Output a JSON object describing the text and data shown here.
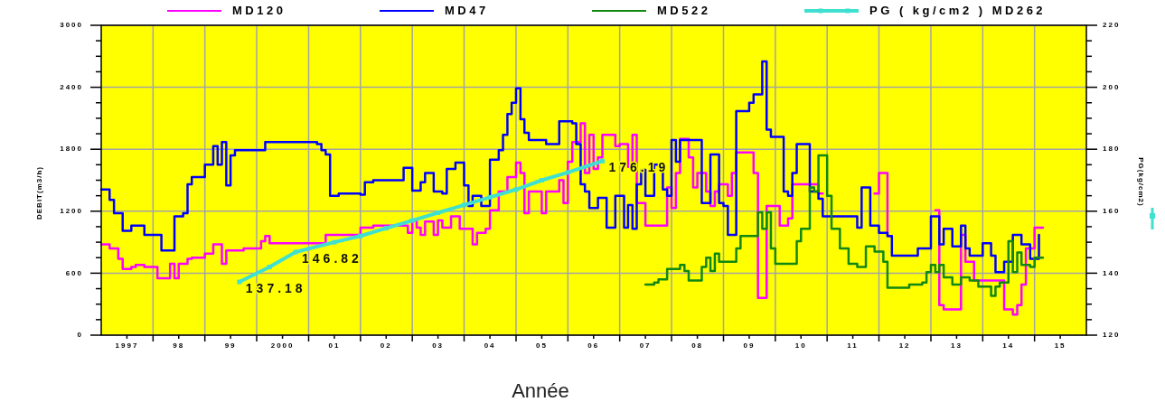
{
  "chart_data": {
    "type": "step",
    "xlabel": "Année",
    "ylabel": "DEBIT(m3/h)",
    "y2label": "PG(kg/cm2)",
    "xlim": [
      "1997",
      "2016"
    ],
    "xticks": [
      {
        "value": "1997-07",
        "label": "1997"
      },
      {
        "value": "1998",
        "label": null
      },
      {
        "value": "1998-07",
        "label": "98"
      },
      {
        "value": "1999",
        "label": null
      },
      {
        "value": "1999-07",
        "label": "99"
      },
      {
        "value": "2000",
        "label": null
      },
      {
        "value": "2000-07",
        "label": "2000"
      },
      {
        "value": "2001",
        "label": null
      },
      {
        "value": "2001-07",
        "label": "01"
      },
      {
        "value": "2002",
        "label": null
      },
      {
        "value": "2002-07",
        "label": "02"
      },
      {
        "value": "2003",
        "label": null
      },
      {
        "value": "2003-07",
        "label": "03"
      },
      {
        "value": "2004",
        "label": null
      },
      {
        "value": "2004-07",
        "label": "04"
      },
      {
        "value": "2005",
        "label": null
      },
      {
        "value": "2005-07",
        "label": "05"
      },
      {
        "value": "2006",
        "label": null
      },
      {
        "value": "2006-07",
        "label": "06"
      },
      {
        "value": "2007",
        "label": null
      },
      {
        "value": "2007-07",
        "label": "07"
      },
      {
        "value": "2008",
        "label": null
      },
      {
        "value": "2008-07",
        "label": "08"
      },
      {
        "value": "2009",
        "label": null
      },
      {
        "value": "2009-07",
        "label": "09"
      },
      {
        "value": "2010",
        "label": null
      },
      {
        "value": "2010-07",
        "label": "10"
      },
      {
        "value": "2011",
        "label": null
      },
      {
        "value": "2011-07",
        "label": "11"
      },
      {
        "value": "2012",
        "label": null
      },
      {
        "value": "2012-07",
        "label": "12"
      },
      {
        "value": "2013",
        "label": null
      },
      {
        "value": "2013-07",
        "label": "13"
      },
      {
        "value": "2014",
        "label": null
      },
      {
        "value": "2014-07",
        "label": "14"
      },
      {
        "value": "2015",
        "label": null
      },
      {
        "value": "2015-07",
        "label": "15"
      }
    ],
    "ylim": [
      0,
      3000
    ],
    "yticks": [
      0,
      {
        "value": 150,
        "label": null
      },
      {
        "value": 300,
        "label": null
      },
      {
        "value": 450,
        "label": null
      },
      600,
      {
        "value": 750,
        "label": null
      },
      {
        "value": 900,
        "label": null
      },
      {
        "value": 1050,
        "label": null
      },
      1200,
      {
        "value": 1350,
        "label": null
      },
      {
        "value": 1500,
        "label": null
      },
      {
        "value": 1650,
        "label": null
      },
      1800,
      {
        "value": 1950,
        "label": null
      },
      {
        "value": 2100,
        "label": null
      },
      {
        "value": 2250,
        "label": null
      },
      2400,
      {
        "value": 2550,
        "label": null
      },
      {
        "value": 2700,
        "label": null
      },
      {
        "value": 2850,
        "label": null
      },
      3000
    ],
    "y2lim": [
      120,
      220
    ],
    "y2ticks": [
      120,
      {
        "value": 125,
        "label": null
      },
      {
        "value": 130,
        "label": null
      },
      {
        "value": 135,
        "label": null
      },
      140,
      {
        "value": 145,
        "label": null
      },
      {
        "value": 150,
        "label": null
      },
      {
        "value": 155,
        "label": null
      },
      160,
      {
        "value": 165,
        "label": null
      },
      {
        "value": 170,
        "label": null
      },
      {
        "value": 175,
        "label": null
      },
      180,
      {
        "value": 185,
        "label": null
      },
      {
        "value": 190,
        "label": null
      },
      {
        "value": 195,
        "label": null
      },
      200,
      {
        "value": 205,
        "label": null
      },
      {
        "value": 210,
        "label": null
      },
      {
        "value": 215,
        "label": null
      },
      220
    ],
    "grid": true,
    "legend": "top",
    "series": [
      {
        "name": "MD120",
        "color": "#ff00ff",
        "x": [
          "1997-01",
          "1997-03",
          "1997-05",
          "1997-06",
          "1997-08",
          "1997-09",
          "1997-11",
          "1998-02",
          "1998-05",
          "1998-06",
          "1998-07",
          "1998-09",
          "1998-10",
          "1999-01",
          "1999-03",
          "1999-05",
          "1999-06",
          "1999-10",
          "2000-02",
          "2000-03",
          "2000-04",
          "2001-05",
          "2002-01",
          "2002-04",
          "2002-12",
          "2003-01",
          "2003-02",
          "2003-03",
          "2003-04",
          "2003-06",
          "2003-07",
          "2003-08",
          "2003-10",
          "2003-12",
          "2004-03",
          "2004-04",
          "2004-06",
          "2004-07",
          "2004-09",
          "2004-11",
          "2005-01",
          "2005-02",
          "2005-03",
          "2005-04",
          "2005-07",
          "2005-08",
          "2005-11",
          "2005-12",
          "2006-01",
          "2006-02",
          "2006-04",
          "2006-05",
          "2006-06",
          "2006-07",
          "2006-08",
          "2006-09",
          "2006-12",
          "2007-01",
          "2007-03",
          "2007-04",
          "2007-05",
          "2007-07",
          "2007-12",
          "2008-01",
          "2008-02",
          "2008-03",
          "2008-05",
          "2008-06",
          "2008-07",
          "2008-09",
          "2008-10",
          "2008-11",
          "2008-12",
          "2009-02",
          "2009-03",
          "2009-04",
          "2009-08",
          "2009-09",
          "2009-11",
          "2010-02",
          "2010-04",
          "2010-05",
          "2010-11",
          "2010-12",
          "2011-01",
          "2011-12",
          "2012-01",
          "2012-03",
          "2012-04",
          "2012-05",
          "2013-02",
          "2013-03",
          "2013-04",
          "2013-08",
          "2013-09",
          "2013-11",
          "2014-06",
          "2014-08",
          "2014-09",
          "2014-10",
          "2014-11",
          "2015-01",
          "2015-03"
        ],
        "values": [
          880,
          840,
          740,
          640,
          660,
          680,
          660,
          550,
          690,
          550,
          690,
          740,
          750,
          790,
          880,
          690,
          820,
          840,
          910,
          960,
          890,
          970,
          1040,
          1060,
          990,
          1110,
          1040,
          970,
          1100,
          970,
          1110,
          1040,
          1150,
          1030,
          880,
          990,
          1030,
          1210,
          1390,
          1530,
          1670,
          1570,
          1180,
          1390,
          1180,
          1390,
          1500,
          1280,
          1680,
          1870,
          2050,
          1570,
          1940,
          1610,
          1720,
          1940,
          1830,
          1850,
          1630,
          1940,
          1280,
          1060,
          1430,
          1230,
          1570,
          1900,
          1720,
          1430,
          1570,
          1390,
          1250,
          1390,
          1460,
          1350,
          1570,
          1770,
          1570,
          360,
          1250,
          1060,
          1130,
          1460,
          1370,
          1370,
          null,
          1370,
          1570,
          960,
          960,
          null,
          1210,
          290,
          250,
          970,
          710,
          530,
          250,
          200,
          290,
          490,
          840,
          1040,
          1040
        ]
      },
      {
        "name": "MD47",
        "color": "#0000ff",
        "x": [
          "1997-01",
          "1997-03",
          "1997-04",
          "1997-06",
          "1997-08",
          "1997-11",
          "1998-03",
          "1998-06",
          "1998-08",
          "1998-09",
          "1998-10",
          "1999-01",
          "1999-03",
          "1999-04",
          "1999-05",
          "1999-06",
          "1999-07",
          "1999-08",
          "2000-03",
          "2001-03",
          "2001-04",
          "2001-05",
          "2001-06",
          "2001-08",
          "2002-01",
          "2002-02",
          "2002-04",
          "2002-11",
          "2003-01",
          "2003-03",
          "2003-04",
          "2003-06",
          "2003-08",
          "2003-09",
          "2003-11",
          "2004-01",
          "2004-02",
          "2004-03",
          "2004-05",
          "2004-07",
          "2004-09",
          "2004-10",
          "2004-11",
          "2004-12",
          "2005-01",
          "2005-02",
          "2005-03",
          "2005-04",
          "2005-08",
          "2005-11",
          "2006-02",
          "2006-03",
          "2006-04",
          "2006-05",
          "2006-06",
          "2006-08",
          "2006-10",
          "2006-12",
          "2007-02",
          "2007-03",
          "2007-04",
          "2007-05",
          "2007-06",
          "2007-07",
          "2007-09",
          "2007-11",
          "2007-12",
          "2008-01",
          "2008-02",
          "2008-03",
          "2008-08",
          "2008-10",
          "2008-12",
          "2009-01",
          "2009-02",
          "2009-04",
          "2009-07",
          "2009-08",
          "2009-10",
          "2009-11",
          "2009-12",
          "2010-03",
          "2010-04",
          "2010-05",
          "2010-06",
          "2010-09",
          "2010-11",
          "2010-12",
          "2011-08",
          "2011-09",
          "2011-11",
          "2012-01",
          "2012-03",
          "2012-04",
          "2012-10",
          "2013-01",
          "2013-03",
          "2013-04",
          "2013-06",
          "2013-08",
          "2013-09",
          "2013-10",
          "2014-01",
          "2014-03",
          "2014-04",
          "2014-06",
          "2014-08",
          "2014-10",
          "2014-12",
          "2015-02"
        ],
        "values": [
          1410,
          1310,
          1180,
          1010,
          1060,
          970,
          820,
          1150,
          1180,
          1460,
          1530,
          1650,
          1830,
          1650,
          1870,
          1450,
          1740,
          1790,
          1870,
          1850,
          1790,
          1750,
          1350,
          1370,
          1360,
          1480,
          1500,
          1620,
          1400,
          1480,
          1570,
          1390,
          1370,
          1610,
          1670,
          1450,
          1250,
          1350,
          1250,
          1700,
          1790,
          1940,
          2140,
          2250,
          2390,
          2090,
          1960,
          1890,
          1850,
          2070,
          2050,
          1850,
          1460,
          1390,
          1230,
          1330,
          1040,
          1350,
          1040,
          1260,
          1030,
          1460,
          1600,
          1350,
          1650,
          1410,
          1350,
          1890,
          1680,
          1890,
          1280,
          1750,
          1280,
          1250,
          970,
          2170,
          2250,
          2330,
          2650,
          1990,
          1920,
          1390,
          1350,
          1570,
          1850,
          1390,
          1320,
          1150,
          1040,
          1430,
          1060,
          990,
          960,
          770,
          840,
          1150,
          880,
          1030,
          860,
          1060,
          840,
          770,
          890,
          770,
          610,
          710,
          970,
          880,
          740,
          970
        ]
      },
      {
        "name": "MD522",
        "color": "#118811",
        "x": [
          "2007-07",
          "2007-09",
          "2007-10",
          "2007-12",
          "2008-03",
          "2008-04",
          "2008-05",
          "2008-08",
          "2008-09",
          "2008-10",
          "2008-11",
          "2008-12",
          "2009-04",
          "2009-05",
          "2009-09",
          "2009-10",
          "2009-11",
          "2009-12",
          "2010-01",
          "2010-06",
          "2010-07",
          "2010-09",
          "2010-10",
          "2010-11",
          "2011-01",
          "2011-02",
          "2011-04",
          "2011-06",
          "2011-08",
          "2011-10",
          "2011-12",
          "2012-02",
          "2012-03",
          "2012-08",
          "2012-11",
          "2012-12",
          "2013-01",
          "2013-02",
          "2013-03",
          "2013-04",
          "2013-06",
          "2013-08",
          "2013-10",
          "2013-12",
          "2014-03",
          "2014-04",
          "2014-05",
          "2014-07",
          "2014-08",
          "2014-09",
          "2014-10",
          "2014-12",
          "2015-01",
          "2015-03"
        ],
        "values": [
          490,
          510,
          540,
          640,
          680,
          620,
          530,
          660,
          750,
          620,
          790,
          710,
          840,
          960,
          1190,
          1030,
          1190,
          840,
          690,
          910,
          1030,
          1430,
          1390,
          1740,
          1350,
          1030,
          840,
          690,
          660,
          860,
          810,
          710,
          460,
          490,
          510,
          610,
          680,
          610,
          680,
          560,
          490,
          560,
          530,
          470,
          380,
          470,
          510,
          910,
          610,
          800,
          680,
          660,
          750,
          750
        ]
      },
      {
        "name": "PG ( kg/cm2 ) MD262",
        "color": "#40e0d0",
        "type": "line",
        "axis": "y2",
        "marker": "square",
        "x": [
          "1999-09",
          "2000-04",
          "2000-10",
          "2001-07",
          "2002-01",
          "2002-07",
          "2003-01",
          "2003-07",
          "2004-01",
          "2004-07",
          "2005-01",
          "2005-07",
          "2006-01",
          "2006-09"
        ],
        "values": [
          137.18,
          142,
          146.82,
          150,
          152,
          154.5,
          157,
          159.5,
          162,
          164.5,
          167,
          170,
          172.5,
          176.19
        ],
        "value_labels": [
          "137.18",
          null,
          "146.82",
          null,
          null,
          null,
          null,
          null,
          null,
          null,
          null,
          null,
          null,
          "176.19"
        ]
      }
    ]
  }
}
